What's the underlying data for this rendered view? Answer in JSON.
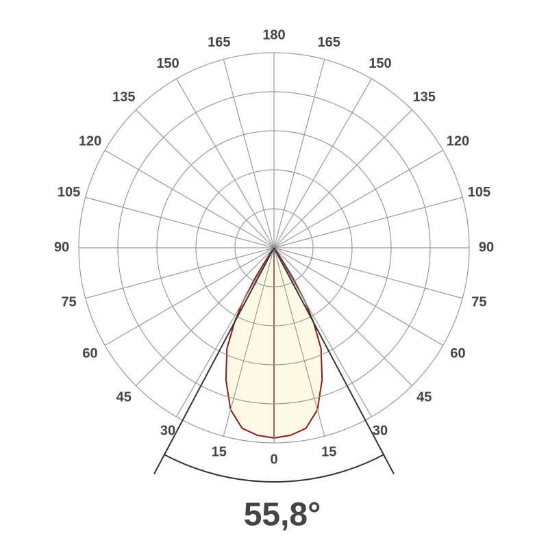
{
  "chart_data": {
    "type": "polar",
    "angle_ticks": [
      0,
      15,
      30,
      45,
      60,
      75,
      90,
      105,
      120,
      135,
      150,
      165,
      180
    ],
    "rlim": [
      0,
      100
    ],
    "rticks": [
      20,
      40,
      60,
      80,
      100
    ],
    "series": [
      {
        "color": "#8b1a1a",
        "fill": "#fdf9e4",
        "angles": [
          0,
          5,
          10,
          15,
          20,
          25,
          28,
          30,
          32,
          34,
          36
        ],
        "values": [
          97.5,
          96.5,
          94,
          86,
          72,
          57,
          43,
          32,
          18,
          5,
          0
        ]
      }
    ],
    "beam_angle": 55.8,
    "beam_angle_label": "55,8°"
  }
}
